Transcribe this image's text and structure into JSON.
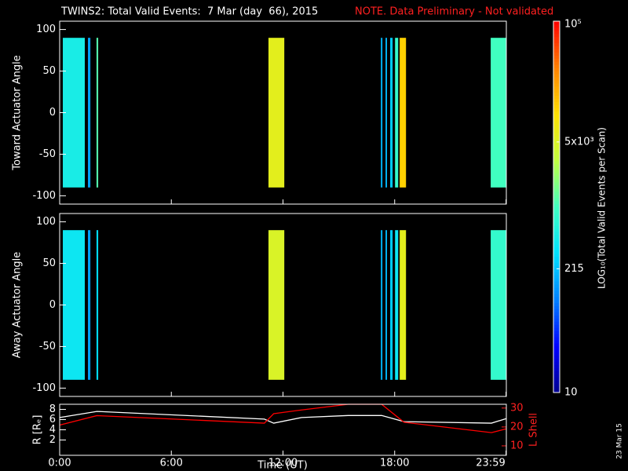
{
  "title": "TWINS2: Total Valid Events:  7 Mar (day  66), 2015",
  "note": "NOTE. Data Preliminary - Not validated",
  "date_stamp": "23 Mar 15",
  "colorbar": {
    "label": "LOG₁₀(Total Valid Events per Scan)",
    "log": true,
    "lim": [
      10,
      100000
    ],
    "ticks": [
      10,
      215,
      {
        "value": 5000,
        "label": "5x10³"
      },
      {
        "value": 100000,
        "label": "10⁵"
      }
    ],
    "colormap": [
      "#000090",
      "#0000ff",
      "#0080ff",
      "#00e0ff",
      "#40ffc0",
      "#c0ff40",
      "#ffe000",
      "#ff8000",
      "#ff0000"
    ]
  },
  "chart_data": [
    {
      "type": "heatmap",
      "ylabel": "Toward Actuator Angle",
      "xlim": [
        0,
        24
      ],
      "ylim": [
        -110,
        110
      ],
      "yticks": [
        -100,
        -50,
        0,
        50,
        100
      ],
      "xticks": [
        0,
        6,
        12,
        18,
        23.983
      ],
      "band_ylim": [
        -90,
        90
      ],
      "bands": {
        "start": [
          0.17,
          1.52,
          1.98,
          11.22,
          17.26,
          17.51,
          17.76,
          18.02,
          18.27,
          23.16
        ],
        "end": [
          1.35,
          1.65,
          2.07,
          12.07,
          17.34,
          17.59,
          17.89,
          18.19,
          18.61,
          24
        ],
        "values": [
          500,
          150,
          1200,
          6000,
          200,
          200,
          250,
          800,
          12000,
          1000
        ]
      }
    },
    {
      "type": "heatmap",
      "ylabel": "Away Actuator Angle",
      "xlim": [
        0,
        24
      ],
      "ylim": [
        -110,
        110
      ],
      "yticks": [
        -100,
        -50,
        0,
        50,
        100
      ],
      "xticks": [
        0,
        6,
        12,
        18,
        23.983
      ],
      "band_ylim": [
        -90,
        90
      ],
      "bands": {
        "start": [
          0.17,
          1.52,
          1.98,
          11.22,
          17.26,
          17.51,
          17.76,
          18.02,
          18.27,
          23.16
        ],
        "end": [
          1.35,
          1.65,
          2.07,
          12.07,
          17.34,
          17.59,
          17.89,
          18.19,
          18.61,
          24
        ],
        "values": [
          400,
          150,
          300,
          5000,
          200,
          200,
          250,
          400,
          6000,
          800
        ]
      }
    },
    {
      "type": "line",
      "xlabel": "Time (UT)",
      "ylabel": "R [Rₑ]",
      "y2label": "L Shell",
      "xlim": [
        0,
        24
      ],
      "ylim": [
        -1,
        9
      ],
      "yticks": [
        2,
        4,
        6,
        8
      ],
      "y2lim": [
        5,
        32
      ],
      "y2ticks": [
        10,
        20,
        30
      ],
      "xticks": [
        {
          "value": 0,
          "label": "0:00"
        },
        {
          "value": 6,
          "label": "6:00"
        },
        {
          "value": 12,
          "label": "12:00"
        },
        {
          "value": 18,
          "label": "18:00"
        },
        {
          "value": 23.983,
          "label": "23:59"
        }
      ],
      "x": [
        0,
        2,
        11,
        11.5,
        13,
        15.5,
        17.3,
        18.5,
        23.2,
        24
      ],
      "series": [
        {
          "name": "R",
          "color": "#ffffff",
          "values": [
            6.4,
            7.6,
            6.1,
            5.3,
            6.4,
            6.8,
            6.8,
            5.6,
            5.3,
            6.2
          ]
        },
        {
          "name": "L Shell",
          "color": "#ff0000",
          "axis": "y2",
          "values": [
            21,
            26,
            22,
            27,
            29,
            32,
            32,
            22.5,
            17,
            19
          ]
        }
      ]
    }
  ]
}
